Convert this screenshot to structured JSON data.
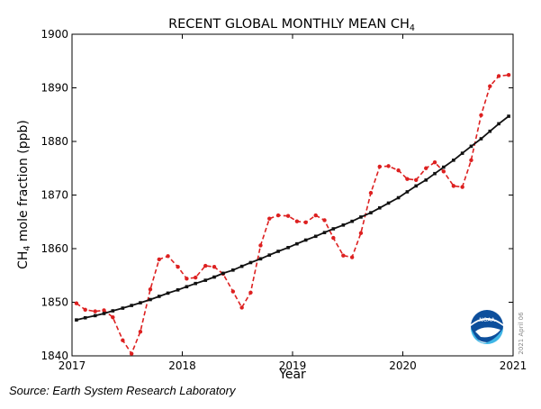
{
  "chart_data": {
    "type": "line",
    "title": "RECENT GLOBAL MONTHLY MEAN CH",
    "title_subscript": "4",
    "xlabel": "Year",
    "ylabel": "CH",
    "ylabel_subscript": "4",
    "ylabel_rest": "mole fraction (ppb)",
    "xlim": [
      2017,
      2021
    ],
    "ylim": [
      1840,
      1900
    ],
    "x_ticks": [
      2017,
      2018,
      2019,
      2020,
      2021
    ],
    "y_ticks": [
      1840,
      1850,
      1860,
      1870,
      1880,
      1890,
      1900
    ],
    "grid": false,
    "legend": "none",
    "series": [
      {
        "style": "dashed",
        "color": "#dd2020",
        "marker": "circle",
        "x": [
          2017.04,
          2017.12,
          2017.21,
          2017.29,
          2017.37,
          2017.46,
          2017.54,
          2017.62,
          2017.71,
          2017.79,
          2017.87,
          2017.96,
          2018.04,
          2018.12,
          2018.21,
          2018.29,
          2018.37,
          2018.46,
          2018.54,
          2018.62,
          2018.71,
          2018.79,
          2018.87,
          2018.96,
          2019.04,
          2019.12,
          2019.21,
          2019.29,
          2019.37,
          2019.46,
          2019.54,
          2019.62,
          2019.71,
          2019.79,
          2019.87,
          2019.96,
          2020.04,
          2020.12,
          2020.21,
          2020.29,
          2020.37,
          2020.46,
          2020.54,
          2020.62,
          2020.71,
          2020.79,
          2020.87,
          2020.96
        ],
        "y": [
          1849.8,
          1848.6,
          1848.3,
          1848.5,
          1847.2,
          1842.9,
          1840.4,
          1844.5,
          1852.4,
          1858.0,
          1858.6,
          1856.6,
          1854.4,
          1854.6,
          1856.8,
          1856.6,
          1855.3,
          1852.0,
          1849.0,
          1851.8,
          1860.6,
          1865.6,
          1866.2,
          1866.1,
          1865.1,
          1864.9,
          1866.2,
          1865.3,
          1862.0,
          1858.7,
          1858.4,
          1862.9,
          1870.4,
          1875.3,
          1875.4,
          1874.6,
          1873.0,
          1872.8,
          1875.0,
          1876.1,
          1874.4,
          1871.7,
          1871.5,
          1876.5,
          1884.9,
          1890.3,
          1892.2,
          1892.4
        ]
      },
      {
        "style": "solid",
        "color": "#111111",
        "marker": "square",
        "x": [
          2017.04,
          2017.12,
          2017.21,
          2017.29,
          2017.37,
          2017.46,
          2017.54,
          2017.62,
          2017.71,
          2017.79,
          2017.87,
          2017.96,
          2018.04,
          2018.12,
          2018.21,
          2018.29,
          2018.37,
          2018.46,
          2018.54,
          2018.62,
          2018.71,
          2018.79,
          2018.87,
          2018.96,
          2019.04,
          2019.12,
          2019.21,
          2019.29,
          2019.37,
          2019.46,
          2019.54,
          2019.62,
          2019.71,
          2019.79,
          2019.87,
          2019.96,
          2020.04,
          2020.12,
          2020.21,
          2020.29,
          2020.37,
          2020.46,
          2020.54,
          2020.62,
          2020.71,
          2020.79,
          2020.87,
          2020.96
        ],
        "y": [
          1846.7,
          1847.1,
          1847.5,
          1847.9,
          1848.4,
          1848.9,
          1849.4,
          1849.9,
          1850.5,
          1851.1,
          1851.7,
          1852.3,
          1852.9,
          1853.5,
          1854.1,
          1854.7,
          1855.4,
          1856.0,
          1856.7,
          1857.4,
          1858.1,
          1858.8,
          1859.5,
          1860.2,
          1860.9,
          1861.6,
          1862.3,
          1863.0,
          1863.7,
          1864.4,
          1865.1,
          1865.9,
          1866.7,
          1867.6,
          1868.5,
          1869.5,
          1870.6,
          1871.7,
          1872.8,
          1874.0,
          1875.2,
          1876.5,
          1877.8,
          1879.1,
          1880.5,
          1881.9,
          1883.3,
          1884.7
        ]
      }
    ],
    "annotations": [
      "2021 April 06"
    ],
    "logo": "noaa-logo"
  },
  "source_text": "Source: Earth System Research Laboratory"
}
